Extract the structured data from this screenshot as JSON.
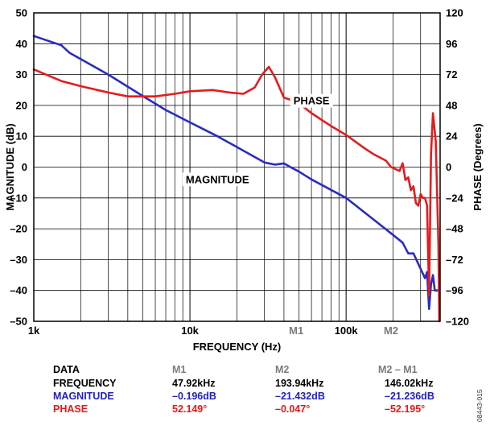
{
  "chart_data": {
    "type": "line",
    "x_scale": "log",
    "xlim": [
      1000,
      400000
    ],
    "ylim_left": [
      -50,
      50
    ],
    "ylim_right": [
      -120,
      120
    ],
    "xlabel": "FREQUENCY (Hz)",
    "ylabel_left": "MAGNITUDE (dB)",
    "ylabel_right": "PHASE (Degrees)",
    "grid": true,
    "x_ticks": [
      {
        "value": 1000,
        "label": "1k"
      },
      {
        "value": 10000,
        "label": "10k"
      },
      {
        "value": 100000,
        "label": "100k"
      }
    ],
    "y_ticks_left": [
      "50",
      "40",
      "30",
      "20",
      "10",
      "0",
      "–10",
      "–20",
      "–30",
      "–40",
      "–50"
    ],
    "y_ticks_right": [
      "120",
      "96",
      "72",
      "48",
      "24",
      "0",
      "–24",
      "–48",
      "–72",
      "–96",
      "–120"
    ],
    "markers": [
      {
        "label": "M1",
        "x": 47920
      },
      {
        "label": "M2",
        "x": 193940
      }
    ],
    "series": [
      {
        "name": "MAGNITUDE",
        "axis": "left",
        "color": "#2b2bc4",
        "points": [
          [
            1000,
            42.5
          ],
          [
            1500,
            39.5
          ],
          [
            1700,
            37
          ],
          [
            3000,
            30
          ],
          [
            5000,
            23
          ],
          [
            7000,
            18.5
          ],
          [
            10000,
            14.5
          ],
          [
            15000,
            10
          ],
          [
            20000,
            6.5
          ],
          [
            30000,
            1.5
          ],
          [
            35000,
            0.8
          ],
          [
            40000,
            1.2
          ],
          [
            44000,
            0
          ],
          [
            50000,
            -1.5
          ],
          [
            60000,
            -4
          ],
          [
            100000,
            -10
          ],
          [
            150000,
            -17
          ],
          [
            200000,
            -22
          ],
          [
            230000,
            -24.5
          ],
          [
            250000,
            -28
          ],
          [
            270000,
            -28
          ],
          [
            300000,
            -33
          ],
          [
            320000,
            -36
          ],
          [
            330000,
            -34
          ],
          [
            340000,
            -46
          ],
          [
            350000,
            -38
          ],
          [
            360000,
            -35
          ],
          [
            370000,
            -40
          ],
          [
            390000,
            -40
          ]
        ]
      },
      {
        "name": "PHASE",
        "axis": "right",
        "color": "#e51c1c",
        "points": [
          [
            1000,
            76
          ],
          [
            1500,
            67
          ],
          [
            2000,
            63
          ],
          [
            3000,
            58
          ],
          [
            4000,
            55
          ],
          [
            6000,
            55
          ],
          [
            8000,
            57
          ],
          [
            10000,
            59
          ],
          [
            14000,
            60
          ],
          [
            18000,
            58
          ],
          [
            22000,
            57
          ],
          [
            26000,
            62
          ],
          [
            29000,
            72
          ],
          [
            32000,
            78
          ],
          [
            35000,
            70
          ],
          [
            40000,
            54
          ],
          [
            45000,
            52
          ],
          [
            52000,
            48
          ],
          [
            60000,
            42
          ],
          [
            80000,
            32
          ],
          [
            100000,
            25
          ],
          [
            130000,
            15
          ],
          [
            150000,
            10
          ],
          [
            180000,
            5
          ],
          [
            194000,
            0
          ],
          [
            220000,
            -3
          ],
          [
            230000,
            3
          ],
          [
            240000,
            -10
          ],
          [
            250000,
            -8
          ],
          [
            260000,
            -18
          ],
          [
            270000,
            -15
          ],
          [
            280000,
            -28
          ],
          [
            290000,
            -30
          ],
          [
            300000,
            -21
          ],
          [
            310000,
            -24
          ],
          [
            320000,
            -24
          ],
          [
            330000,
            -30
          ],
          [
            340000,
            -100
          ],
          [
            350000,
            10
          ],
          [
            360000,
            42
          ],
          [
            375000,
            20
          ],
          [
            390000,
            -60
          ],
          [
            395000,
            -120
          ]
        ]
      }
    ],
    "annotations": [
      {
        "text": "PHASE",
        "x": 60000,
        "y_left": 21.5
      },
      {
        "text": "MAGNITUDE",
        "x": 15000,
        "y_left": -4
      }
    ]
  },
  "table": {
    "header": [
      "DATA",
      "M1",
      "M2",
      "M2 – M1"
    ],
    "rows": [
      {
        "label": "FREQUENCY",
        "m1": "47.92kHz",
        "m2": "193.94kHz",
        "diff": "146.02kHz"
      },
      {
        "label": "MAGNITUDE",
        "m1": "–0.196dB",
        "m2": "–21.432dB",
        "diff": "–21.236dB"
      },
      {
        "label": "PHASE",
        "m1": "52.149°",
        "m2": "–0.047°",
        "diff": "–52.195°"
      }
    ]
  },
  "figure_id": "08443-015",
  "colors": {
    "magnitude": "#2b2bc4",
    "phase": "#e51c1c",
    "grid": "#000000"
  }
}
